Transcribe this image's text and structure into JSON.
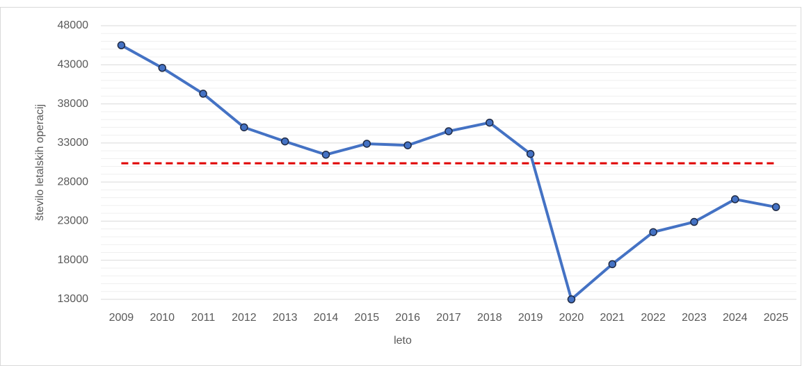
{
  "chart_data": {
    "type": "line",
    "categories": [
      "2009",
      "2010",
      "2011",
      "2012",
      "2013",
      "2014",
      "2015",
      "2016",
      "2017",
      "2018",
      "2019",
      "2020",
      "2021",
      "2022",
      "2023",
      "2024",
      "2025"
    ],
    "series": [
      {
        "name": "število letalskih operacij",
        "color": "#4472c4",
        "values": [
          45500,
          42600,
          39300,
          35000,
          33200,
          31500,
          32900,
          32700,
          34500,
          35600,
          31600,
          13000,
          17500,
          21600,
          22900,
          25800,
          24800
        ]
      }
    ],
    "reference_line": {
      "value": 30400,
      "color": "#e00000",
      "style": "dashed"
    },
    "ylim": [
      13000,
      48000
    ],
    "yticks": [
      13000,
      18000,
      23000,
      28000,
      33000,
      38000,
      43000,
      48000
    ],
    "xlabel": "leto",
    "ylabel": "število letalskih operacij",
    "grid": true
  }
}
